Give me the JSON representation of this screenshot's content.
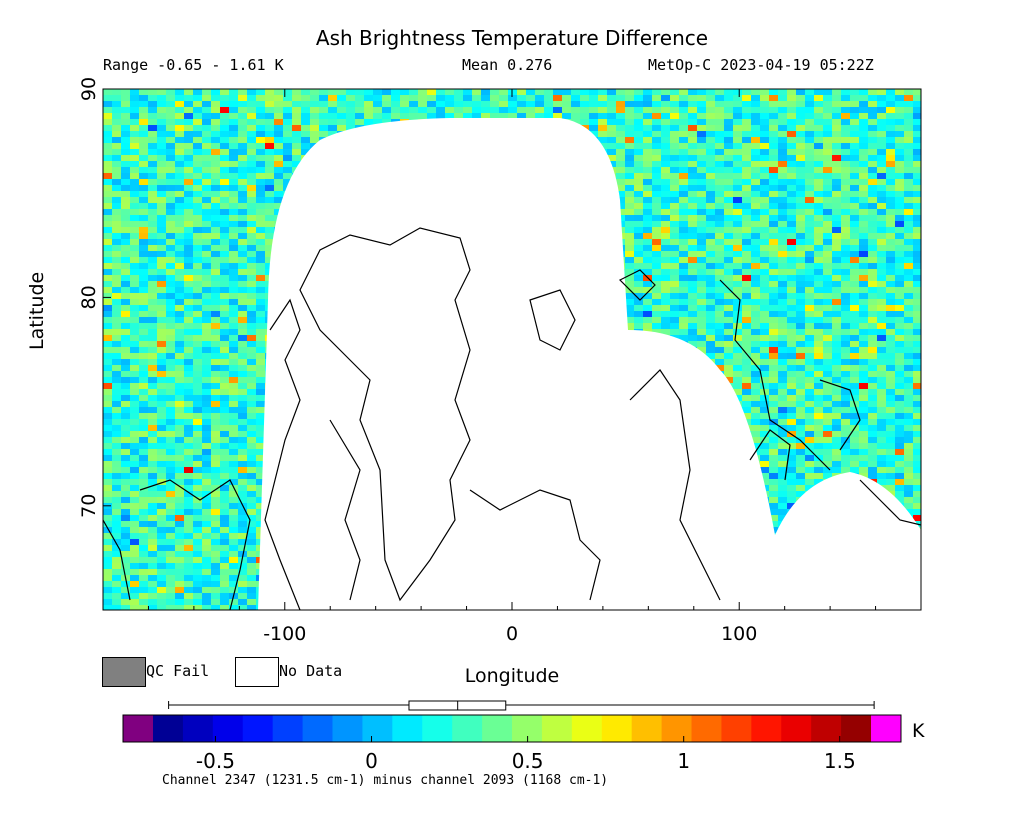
{
  "header": {
    "title": "Ash Brightness Temperature Difference",
    "range": "Range -0.65 - 1.61 K",
    "mean": "Mean 0.276",
    "satellite": "MetOp-C 2023-04-19 05:22Z"
  },
  "legend": {
    "qc_fail_label": "QC Fail",
    "no_data_label": "No Data",
    "qc_fail_color": "#808080",
    "no_data_color": "#ffffff"
  },
  "colorbar": {
    "unit": "K",
    "ticks": [
      "-0.5",
      "0",
      "0.5",
      "1",
      "1.5"
    ],
    "tick_values": [
      -0.5,
      0,
      0.5,
      1,
      1.5
    ],
    "range": [
      -0.7,
      1.6
    ],
    "underflow_color": "#800080",
    "overflow_color": "#ff00ff",
    "caption": "Channel 2347 (1231.5 cm-1) minus channel 2093 (1168 cm-1)",
    "boxplot": {
      "min": -0.65,
      "q1": 0.12,
      "median": 0.276,
      "q3": 0.43,
      "max": 1.61
    }
  },
  "chart_data": {
    "type": "heatmap",
    "title": "Ash Brightness Temperature Difference",
    "xlabel": "Longitude",
    "ylabel": "Latitude",
    "xlim": [
      -180,
      180
    ],
    "ylim": [
      65,
      90
    ],
    "x_ticks": [
      -100,
      0,
      100
    ],
    "y_ticks": [
      70,
      80,
      90
    ],
    "value_range": [
      -0.65,
      1.61
    ],
    "mean": 0.276,
    "units": "K",
    "grid": false
  }
}
